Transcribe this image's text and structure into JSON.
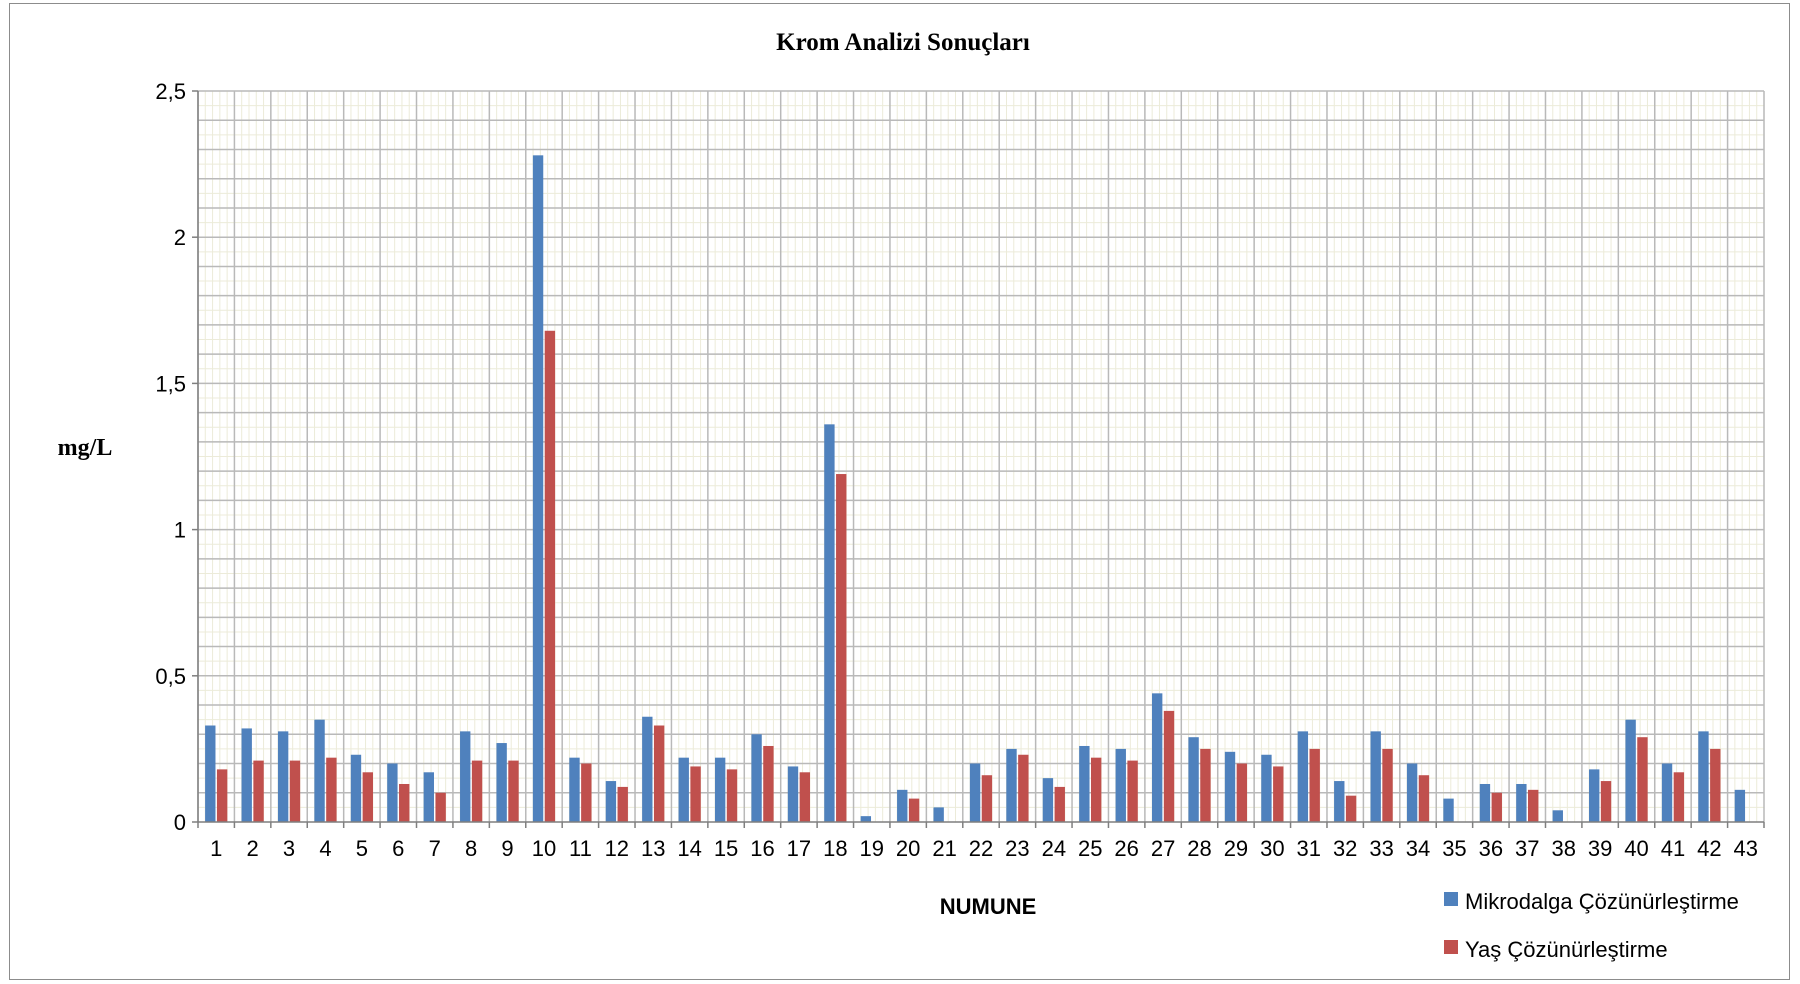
{
  "chart_data": {
    "type": "bar",
    "title": "Krom Analizi Sonuçları",
    "xlabel": "NUMUNE",
    "ylabel": "mg/L",
    "ylim": [
      0,
      2.5
    ],
    "yticks": [
      0,
      0.5,
      1,
      1.5,
      2,
      2.5
    ],
    "ytick_labels": [
      "0",
      "0,5",
      "1",
      "1,5",
      "2",
      "2,5"
    ],
    "grid": true,
    "legend_position": "bottom-right",
    "categories": [
      "1",
      "2",
      "3",
      "4",
      "5",
      "6",
      "7",
      "8",
      "9",
      "10",
      "11",
      "12",
      "13",
      "14",
      "15",
      "16",
      "17",
      "18",
      "19",
      "20",
      "21",
      "22",
      "23",
      "24",
      "25",
      "26",
      "27",
      "28",
      "29",
      "30",
      "31",
      "32",
      "33",
      "34",
      "35",
      "36",
      "37",
      "38",
      "39",
      "40",
      "41",
      "42",
      "43"
    ],
    "series": [
      {
        "name": "Mikrodalga Çözünürleştirme",
        "color": "#4f81bd",
        "values": [
          0.33,
          0.32,
          0.31,
          0.35,
          0.23,
          0.2,
          0.17,
          0.31,
          0.27,
          2.28,
          0.22,
          0.14,
          0.36,
          0.22,
          0.22,
          0.3,
          0.19,
          1.36,
          0.02,
          0.11,
          0.05,
          0.2,
          0.25,
          0.15,
          0.26,
          0.25,
          0.44,
          0.29,
          0.24,
          0.23,
          0.31,
          0.14,
          0.31,
          0.2,
          0.08,
          0.13,
          0.13,
          0.04,
          0.18,
          0.35,
          0.2,
          0.31,
          0.11
        ]
      },
      {
        "name": "Yaş Çözünürleştirme",
        "color": "#c0504d",
        "values": [
          0.18,
          0.21,
          0.21,
          0.22,
          0.17,
          0.13,
          0.1,
          0.21,
          0.21,
          1.68,
          0.2,
          0.12,
          0.33,
          0.19,
          0.18,
          0.26,
          0.17,
          1.19,
          0.0,
          0.08,
          0.0,
          0.16,
          0.23,
          0.12,
          0.22,
          0.21,
          0.38,
          0.25,
          0.2,
          0.19,
          0.25,
          0.09,
          0.25,
          0.16,
          0.0,
          0.1,
          0.11,
          0.0,
          0.14,
          0.29,
          0.17,
          0.25,
          0.0
        ]
      }
    ]
  }
}
